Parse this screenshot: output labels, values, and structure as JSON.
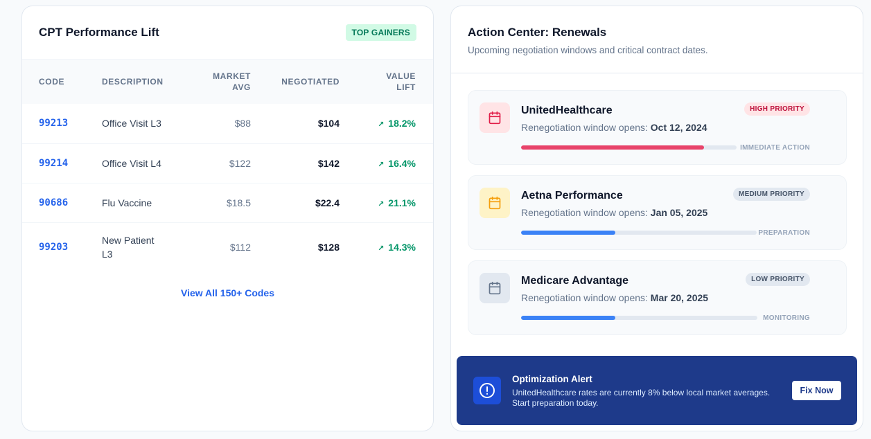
{
  "cpt": {
    "title": "CPT Performance Lift",
    "badge": "TOP GAINERS",
    "columns": {
      "code": "CODE",
      "description": "DESCRIPTION",
      "market_avg": "MARKET AVG",
      "negotiated": "NEGOTIATED",
      "value_lift": "VALUE LIFT"
    },
    "rows": [
      {
        "code": "99213",
        "description": "Office Visit L3",
        "market_avg": "$88",
        "negotiated": "$104",
        "lift": "18.2%"
      },
      {
        "code": "99214",
        "description": "Office Visit L4",
        "market_avg": "$122",
        "negotiated": "$142",
        "lift": "16.4%"
      },
      {
        "code": "90686",
        "description": "Flu Vaccine",
        "market_avg": "$18.5",
        "negotiated": "$22.4",
        "lift": "21.1%"
      },
      {
        "code": "99203",
        "description": "New Patient L3",
        "market_avg": "$112",
        "negotiated": "$128",
        "lift": "14.3%"
      }
    ],
    "view_all": "View All 150+ Codes"
  },
  "renewals": {
    "title": "Action Center: Renewals",
    "subtitle": "Upcoming negotiation windows and critical contract dates.",
    "window_prefix": "Renegotiation window opens:",
    "items": [
      {
        "payer": "UnitedHealthcare",
        "date": "Oct 12, 2024",
        "priority": "HIGH PRIORITY",
        "status": "IMMEDIATE ACTION",
        "progress": 85,
        "icon": "calendar-icon",
        "accent": "#e11d48"
      },
      {
        "payer": "Aetna Performance",
        "date": "Jan 05, 2025",
        "priority": "MEDIUM PRIORITY",
        "status": "PREPARATION",
        "progress": 40,
        "icon": "calendar-icon",
        "accent": "#f59e0b"
      },
      {
        "payer": "Medicare Advantage",
        "date": "Mar 20, 2025",
        "priority": "LOW PRIORITY",
        "status": "MONITORING",
        "progress": 40,
        "icon": "calendar-icon",
        "accent": "#64748b"
      }
    ]
  },
  "alert": {
    "title": "Optimization Alert",
    "message": "UnitedHealthcare rates are currently 8% below local market averages. Start preparation today.",
    "button": "Fix Now",
    "icon": "alert-circle-icon"
  },
  "colors": {
    "brand_blue": "#2563eb",
    "success": "#059669",
    "high": "#e11d48",
    "progress_blue": "#3b82f6",
    "alert_bg": "#1e3a8a"
  }
}
